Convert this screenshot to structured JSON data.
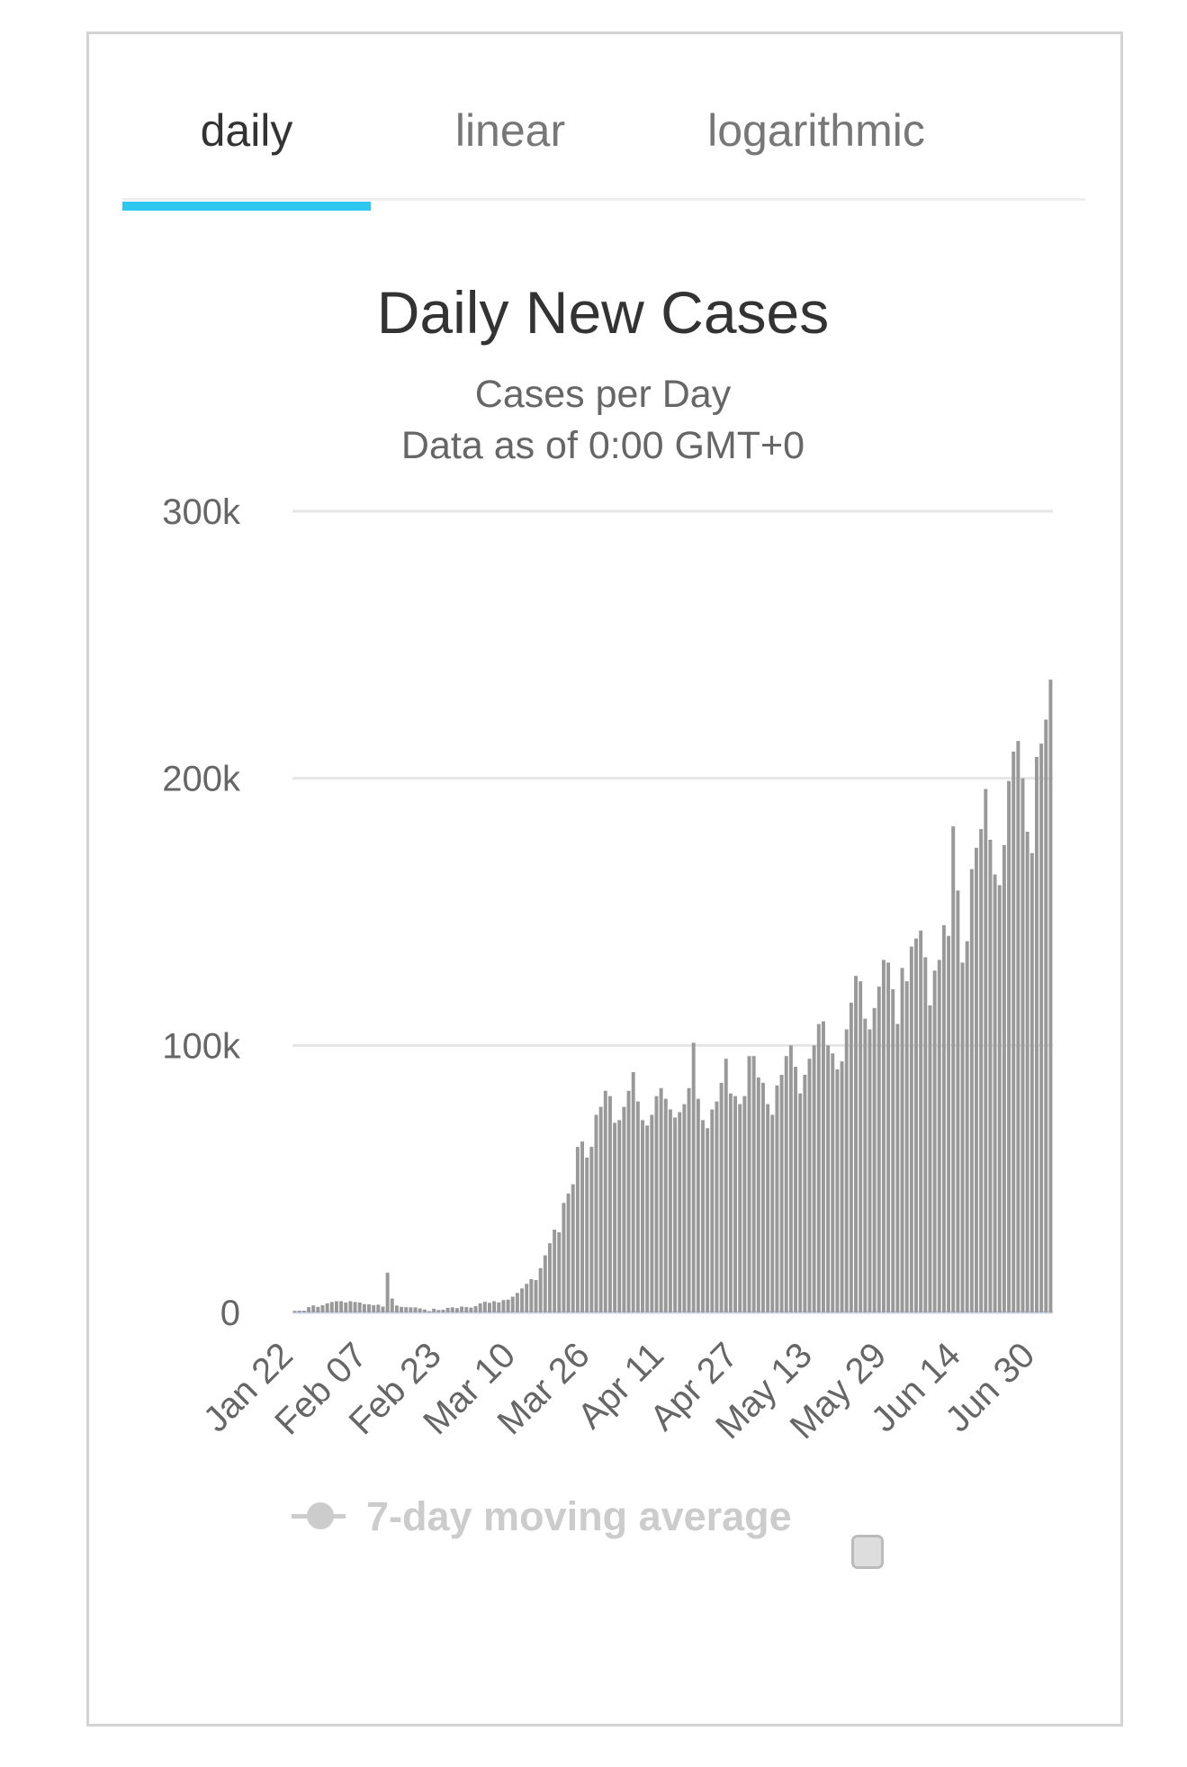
{
  "tabs": [
    {
      "label": "daily",
      "active": true
    },
    {
      "label": "linear",
      "active": false
    },
    {
      "label": "logarithmic",
      "active": false
    }
  ],
  "accent_color": "#2ec7f2",
  "chart_data": {
    "type": "bar",
    "title": "Daily New Cases",
    "subtitle": "Cases per Day",
    "subtitle2": "Data as of 0:00 GMT+0",
    "ylim": [
      0,
      300000
    ],
    "y_ticks": [
      {
        "value": 0,
        "label": "0"
      },
      {
        "value": 100000,
        "label": "100k"
      },
      {
        "value": 200000,
        "label": "200k"
      },
      {
        "value": 300000,
        "label": "300k"
      }
    ],
    "x_tick_labels": [
      "Jan 22",
      "Feb 07",
      "Feb 23",
      "Mar 10",
      "Mar 26",
      "Apr 11",
      "Apr 27",
      "May 13",
      "May 29",
      "Jun 14",
      "Jun 30"
    ],
    "x_tick_interval_days": 16,
    "start_date": "Jan 22",
    "grid": true,
    "bar_color": "#999999",
    "values": [
      580,
      640,
      640,
      1970,
      2600,
      2100,
      2700,
      3400,
      3900,
      4200,
      4200,
      3700,
      4200,
      3900,
      3700,
      3100,
      3000,
      2700,
      2900,
      2200,
      14900,
      5200,
      2600,
      2100,
      2000,
      1900,
      1900,
      1500,
      1100,
      450,
      1400,
      900,
      1000,
      1700,
      1900,
      1600,
      2200,
      2000,
      1800,
      2400,
      3400,
      4000,
      3600,
      4200,
      3700,
      4600,
      4800,
      5900,
      7300,
      9000,
      10700,
      12500,
      12100,
      16600,
      21400,
      25900,
      31000,
      30000,
      41000,
      44500,
      48000,
      62000,
      64000,
      58000,
      62000,
      74000,
      77000,
      83000,
      81000,
      71000,
      72000,
      77000,
      83000,
      90000,
      79000,
      72000,
      70000,
      74000,
      81000,
      84000,
      80000,
      76000,
      73000,
      75000,
      78000,
      84000,
      101000,
      80000,
      72000,
      69000,
      76000,
      79000,
      86000,
      95000,
      82000,
      81000,
      78000,
      81000,
      96000,
      96000,
      88000,
      86000,
      78000,
      74000,
      85000,
      89000,
      96000,
      100000,
      92000,
      82000,
      89000,
      95000,
      100000,
      108000,
      109000,
      100000,
      97000,
      91000,
      94000,
      106000,
      116000,
      126000,
      124000,
      110000,
      106000,
      114000,
      122000,
      132000,
      131000,
      121000,
      108000,
      129000,
      124000,
      137000,
      140000,
      143000,
      133000,
      115000,
      128000,
      132000,
      145000,
      141000,
      182000,
      158000,
      131000,
      139000,
      166000,
      174000,
      181000,
      196000,
      177000,
      164000,
      160000,
      175000,
      199000,
      210000,
      214000,
      200000,
      180000,
      172000,
      208000,
      213000,
      222000,
      237000
    ]
  },
  "legend": {
    "label": "7-day moving average",
    "checked": false
  }
}
